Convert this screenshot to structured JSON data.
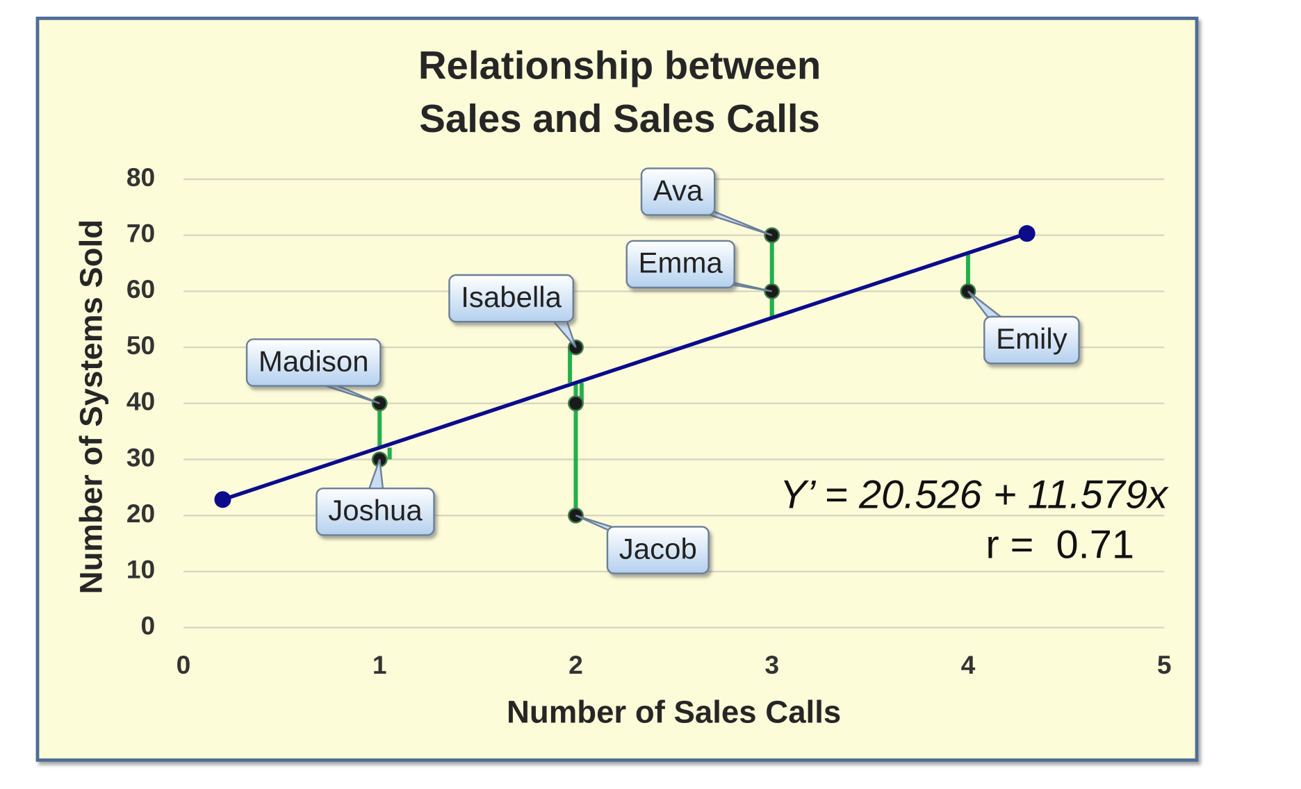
{
  "chart_data": {
    "type": "scatter",
    "title": [
      "Relationship between",
      "Sales and Sales Calls"
    ],
    "x_label": "Number of Sales Calls",
    "y_label": "Number of Systems Sold",
    "x": [
      1,
      1,
      2,
      2,
      2,
      3,
      3,
      4
    ],
    "values": [
      40,
      30,
      50,
      40,
      20,
      70,
      60,
      60
    ],
    "point_labels": [
      "Madison",
      "Joshua",
      "Isabella",
      null,
      "Jacob",
      "Ava",
      "Emma",
      "Emily"
    ],
    "fit": {
      "intercept": 20.526,
      "slope": 11.579,
      "x": [
        0.2,
        4.3
      ],
      "color": "#0b0b8c"
    },
    "residual_color": "#22b04b",
    "point_color": "#1a1a1a",
    "annotations": [
      "Y’ = 20.526 + 11.579x",
      "r =  0.71"
    ],
    "xlim": [
      0,
      5
    ],
    "xticks": [
      0,
      1,
      2,
      3,
      4,
      5
    ],
    "ylim": [
      0,
      80
    ],
    "yticks": [
      0,
      10,
      20,
      30,
      40,
      50,
      60,
      70,
      80
    ],
    "grid": true
  }
}
